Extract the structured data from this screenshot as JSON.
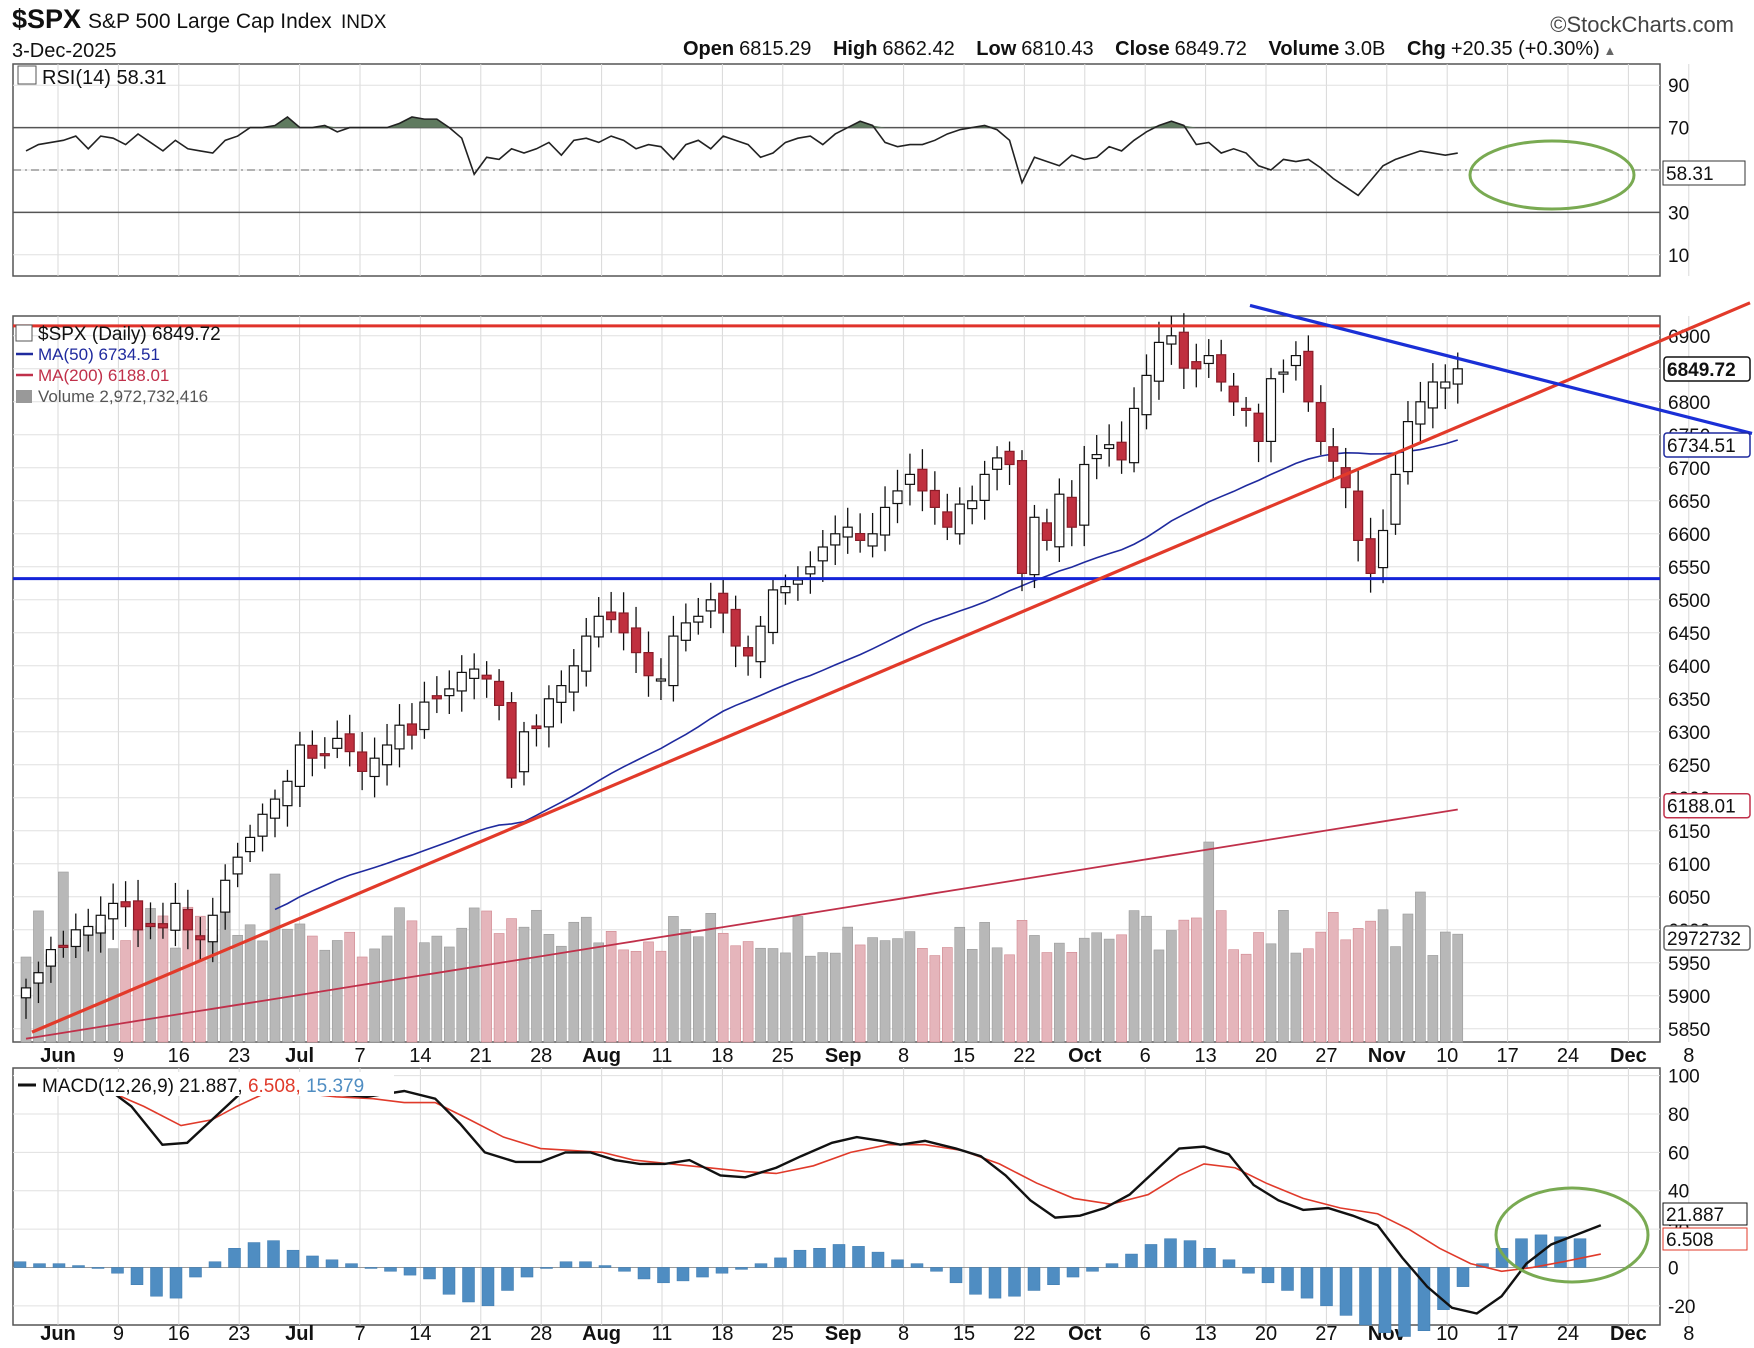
{
  "header": {
    "symbol": "$SPX",
    "name": "S&P 500 Large Cap Index",
    "exchange": "INDX",
    "date": "3-Dec-2025",
    "brand": "©StockCharts.com",
    "open_label": "Open",
    "open": "6815.29",
    "high_label": "High",
    "high": "6862.42",
    "low_label": "Low",
    "low": "6810.43",
    "close_label": "Close",
    "close": "6849.72",
    "volume_label": "Volume",
    "volume": "3.0B",
    "chg_label": "Chg",
    "chg": "+20.35 (+0.30%)"
  },
  "colors": {
    "up": "#ffffff",
    "down": "#c0303f",
    "ma50": "#1f2a9e",
    "ma200": "#c0304a",
    "trend_red": "#e23a2a",
    "trend_blue": "#1a2fd6",
    "macd_line": "#111111",
    "signal": "#e03a2a",
    "hist": "#4f8dc2",
    "circle": "#79aa52"
  },
  "chart_data": [
    {
      "type": "line",
      "title": "RSI(14) 58.31",
      "series": [
        {
          "name": "RSI(14)",
          "last": 58.31
        }
      ],
      "yticks": [
        10,
        30,
        50,
        70,
        90
      ],
      "ylim": [
        0,
        100
      ],
      "levels": [
        30,
        50,
        70
      ],
      "value_label": "58.31",
      "rsi": [
        59,
        62,
        63,
        64,
        66,
        60,
        66,
        65,
        62,
        67,
        63,
        59,
        64,
        60,
        59,
        58,
        64,
        66,
        70,
        70,
        71,
        75,
        70,
        70,
        71,
        68,
        70,
        70,
        70,
        70,
        72,
        75,
        74,
        74,
        70,
        65,
        48,
        56,
        55,
        60,
        58,
        60,
        63,
        57,
        64,
        65,
        63,
        66,
        64,
        60,
        62,
        61,
        55,
        62,
        64,
        60,
        66,
        64,
        62,
        56,
        58,
        63,
        65,
        66,
        62,
        67,
        70,
        73,
        71,
        63,
        61,
        62,
        62,
        64,
        67,
        69,
        70,
        71,
        69,
        64,
        44,
        56,
        54,
        52,
        57,
        55,
        56,
        61,
        59,
        64,
        68,
        71,
        73,
        71,
        62,
        63,
        58,
        60,
        58,
        52,
        50,
        55,
        54,
        55,
        51,
        46,
        42,
        38,
        45,
        52,
        55,
        57,
        59,
        58,
        57,
        58
      ]
    },
    {
      "type": "candlestick",
      "title": "$SPX (Daily) 6849.72",
      "legend": [
        {
          "label": "$SPX (Daily) 6849.72"
        },
        {
          "label": "MA(50) 6734.51",
          "color": "#1f2a9e"
        },
        {
          "label": "MA(200) 6188.01",
          "color": "#c0304a"
        },
        {
          "label": "Volume 2,972,732,416",
          "color": "#888888"
        }
      ],
      "yticks": [
        5850,
        5900,
        5950,
        6000,
        6050,
        6100,
        6150,
        6200,
        6250,
        6300,
        6350,
        6400,
        6450,
        6500,
        6550,
        6600,
        6650,
        6700,
        6750,
        6800,
        6850,
        6900
      ],
      "ylim": [
        5830,
        6930
      ],
      "xtick_labels": [
        "Jun",
        "9",
        "16",
        "23",
        "Jul",
        "7",
        "14",
        "21",
        "28",
        "Aug",
        "11",
        "18",
        "25",
        "Sep",
        "8",
        "15",
        "22",
        "Oct",
        "6",
        "13",
        "20",
        "27",
        "Nov",
        "10",
        "17",
        "24",
        "Dec",
        "8"
      ],
      "bold_xticks": [
        "Jun",
        "Jul",
        "Aug",
        "Sep",
        "Oct",
        "Nov",
        "Dec"
      ],
      "price_tags": {
        "close": "6849.72",
        "ma50": "6734.51",
        "ma200": "6188.01",
        "volume": "2972732"
      },
      "horizontal_lines": [
        {
          "value": 6915,
          "color": "red"
        },
        {
          "value": 6532,
          "color": "blue"
        }
      ],
      "closes": [
        5912,
        5935,
        5970,
        5976,
        6000,
        6005,
        6022,
        6040,
        6035,
        6000,
        6005,
        6003,
        6040,
        6000,
        5985,
        6022,
        6075,
        6110,
        6140,
        6175,
        6198,
        6225,
        6280,
        6260,
        6265,
        6290,
        6270,
        6240,
        6260,
        6280,
        6310,
        6295,
        6345,
        6350,
        6365,
        6390,
        6395,
        6380,
        6340,
        6230,
        6300,
        6305,
        6350,
        6370,
        6400,
        6445,
        6475,
        6470,
        6450,
        6420,
        6385,
        6380,
        6445,
        6465,
        6475,
        6500,
        6480,
        6430,
        6415,
        6460,
        6515,
        6520,
        6530,
        6550,
        6580,
        6600,
        6610,
        6590,
        6600,
        6640,
        6665,
        6690,
        6665,
        6640,
        6610,
        6645,
        6650,
        6690,
        6715,
        6705,
        6540,
        6625,
        6590,
        6660,
        6610,
        6705,
        6720,
        6735,
        6712,
        6790,
        6840,
        6890,
        6900,
        6851,
        6850,
        6870,
        6830,
        6800,
        6790,
        6740,
        6835,
        6845,
        6870,
        6800,
        6740,
        6710,
        6670,
        6590,
        6540,
        6605,
        6690,
        6770,
        6800,
        6830,
        6830,
        6850
      ]
    },
    {
      "type": "line",
      "title": "MACD(12,26,9) 21.887, 6.508, 15.379",
      "legend_prefix": "MACD(12,26,9)",
      "legend_values": [
        "21.887",
        "6.508",
        "15.379"
      ],
      "yticks": [
        -20,
        0,
        20,
        40,
        60,
        80,
        100
      ],
      "ylim": [
        -30,
        104
      ],
      "value_labels": [
        "21.887",
        "6.508"
      ],
      "macd_points": [
        [
          0,
          98
        ],
        [
          6,
          97
        ],
        [
          12,
          96
        ],
        [
          17,
          84
        ],
        [
          22,
          64
        ],
        [
          26,
          65
        ],
        [
          31,
          80
        ],
        [
          35,
          92
        ],
        [
          38,
          98
        ],
        [
          45,
          93
        ],
        [
          51,
          90
        ],
        [
          55,
          89
        ],
        [
          61,
          92
        ],
        [
          66,
          88
        ],
        [
          70,
          75
        ],
        [
          74,
          60
        ],
        [
          79,
          55
        ],
        [
          83,
          55
        ],
        [
          87,
          60
        ],
        [
          91,
          60
        ],
        [
          95,
          56
        ],
        [
          99,
          54
        ],
        [
          103,
          54
        ],
        [
          107,
          56
        ],
        [
          112,
          48
        ],
        [
          116,
          47
        ],
        [
          121,
          52
        ],
        [
          125,
          58
        ],
        [
          130,
          65
        ],
        [
          134,
          68
        ],
        [
          138,
          66
        ],
        [
          141,
          64
        ],
        [
          145,
          66
        ],
        [
          150,
          62
        ],
        [
          154,
          58
        ],
        [
          158,
          48
        ],
        [
          162,
          35
        ],
        [
          166,
          26
        ],
        [
          170,
          27
        ],
        [
          174,
          31
        ],
        [
          178,
          38
        ],
        [
          182,
          50
        ],
        [
          186,
          62
        ],
        [
          190,
          63
        ],
        [
          194,
          59
        ],
        [
          198,
          43
        ],
        [
          202,
          35
        ],
        [
          206,
          30
        ],
        [
          210,
          31
        ],
        [
          214,
          27
        ],
        [
          218,
          22
        ],
        [
          222,
          5
        ],
        [
          226,
          -10
        ],
        [
          230,
          -21
        ],
        [
          234,
          -24
        ],
        [
          238,
          -15
        ],
        [
          242,
          2
        ],
        [
          246,
          12
        ],
        [
          250,
          17
        ],
        [
          254,
          22
        ]
      ],
      "signal_points": [
        [
          0,
          95
        ],
        [
          8,
          93
        ],
        [
          14,
          91
        ],
        [
          19,
          84
        ],
        [
          25,
          74
        ],
        [
          30,
          77
        ],
        [
          34,
          84
        ],
        [
          38,
          90
        ],
        [
          44,
          91
        ],
        [
          50,
          89
        ],
        [
          56,
          88
        ],
        [
          61,
          86
        ],
        [
          66,
          86
        ],
        [
          71,
          78
        ],
        [
          77,
          68
        ],
        [
          83,
          62
        ],
        [
          88,
          61
        ],
        [
          93,
          60
        ],
        [
          98,
          56
        ],
        [
          104,
          54
        ],
        [
          110,
          52
        ],
        [
          116,
          50
        ],
        [
          121,
          49
        ],
        [
          127,
          53
        ],
        [
          133,
          60
        ],
        [
          139,
          64
        ],
        [
          145,
          64
        ],
        [
          151,
          61
        ],
        [
          157,
          54
        ],
        [
          163,
          44
        ],
        [
          169,
          36
        ],
        [
          175,
          33
        ],
        [
          181,
          38
        ],
        [
          186,
          48
        ],
        [
          190,
          54
        ],
        [
          195,
          52
        ],
        [
          200,
          44
        ],
        [
          206,
          36
        ],
        [
          212,
          31
        ],
        [
          218,
          28
        ],
        [
          223,
          20
        ],
        [
          228,
          10
        ],
        [
          233,
          2
        ],
        [
          238,
          -2
        ],
        [
          243,
          0
        ],
        [
          248,
          3
        ],
        [
          254,
          7
        ]
      ],
      "histogram": [
        3,
        2,
        2,
        1,
        0,
        -3,
        -9,
        -15,
        -16,
        -5,
        3,
        10,
        13,
        14,
        9,
        6,
        4,
        2,
        0,
        -2,
        -4,
        -6,
        -14,
        -18,
        -20,
        -12,
        -5,
        0,
        3,
        3,
        1,
        -2,
        -6,
        -8,
        -7,
        -5,
        -3,
        -1,
        2,
        5,
        9,
        10,
        12,
        11,
        8,
        4,
        2,
        -2,
        -8,
        -14,
        -16,
        -15,
        -12,
        -9,
        -5,
        -2,
        2,
        7,
        12,
        15,
        14,
        10,
        4,
        -3,
        -8,
        -12,
        -16,
        -20,
        -25,
        -30,
        -34,
        -36,
        -33,
        -22,
        -10,
        2,
        10,
        15,
        17,
        16,
        15
      ]
    }
  ]
}
